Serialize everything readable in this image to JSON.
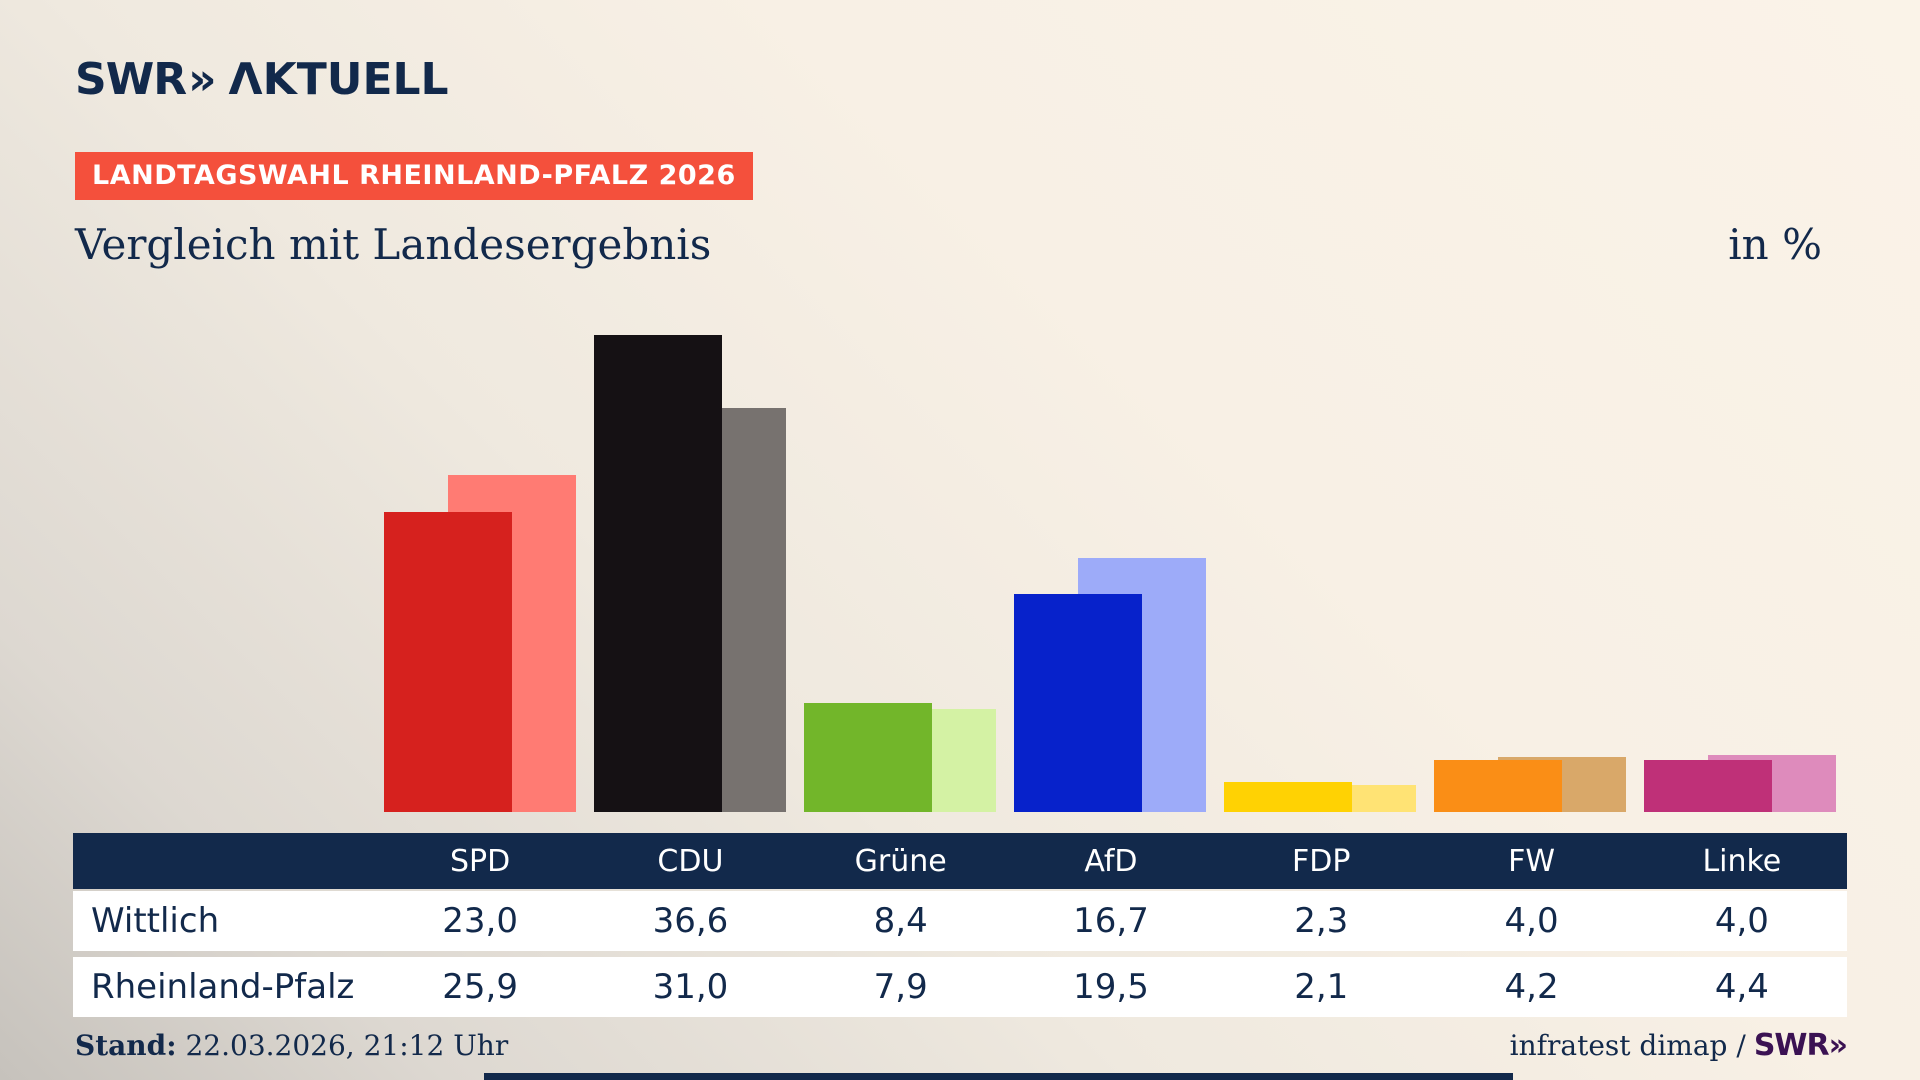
{
  "colors": {
    "background_light": "#faf3e8",
    "background_dark": "#c6c2bc",
    "navy": "#12294b",
    "banner_red": "#f4503c",
    "table_header_bg": "#12294b",
    "table_row_bg": "#ffffff",
    "footer_logo_purple": "#3b1253"
  },
  "header": {
    "logo": {
      "swr": "SWR",
      "chevrons": "»",
      "aktuell": "ΛKTUELL"
    },
    "banner": "LANDTAGSWAHL RHEINLAND-PFALZ 2026",
    "subtitle": "Vergleich mit Landesergebnis",
    "unit_label": "in %"
  },
  "chart_data": {
    "type": "bar",
    "title": "Vergleich mit Landesergebnis",
    "unit": "in %",
    "categories": [
      "SPD",
      "CDU",
      "Grüne",
      "AfD",
      "FDP",
      "FW",
      "Linke"
    ],
    "series": [
      {
        "name": "Wittlich",
        "values": [
          23.0,
          36.6,
          8.4,
          16.7,
          2.3,
          4.0,
          4.0
        ],
        "colors": [
          "#d6211e",
          "#151114",
          "#72b62a",
          "#0722cb",
          "#ffd203",
          "#fa8e16",
          "#bf3078"
        ]
      },
      {
        "name": "Rheinland-Pfalz",
        "values": [
          25.9,
          31.0,
          7.9,
          19.5,
          2.1,
          4.2,
          4.4
        ],
        "colors": [
          "#ff7b73",
          "#77726f",
          "#d4f2a4",
          "#9dabf9",
          "#ffe374",
          "#d9a869",
          "#de8bbc"
        ]
      }
    ],
    "ylim": [
      0,
      40
    ],
    "grid": false,
    "legend_position": "table-below",
    "value_format": "decimal-comma"
  },
  "table": {
    "columns": [
      "SPD",
      "CDU",
      "Grüne",
      "AfD",
      "FDP",
      "FW",
      "Linke"
    ],
    "rows": [
      {
        "label": "Wittlich",
        "values": [
          "23,0",
          "36,6",
          "8,4",
          "16,7",
          "2,3",
          "4,0",
          "4,0"
        ]
      },
      {
        "label": "Rheinland-Pfalz",
        "values": [
          "25,9",
          "31,0",
          "7,9",
          "19,5",
          "2,1",
          "4,2",
          "4,4"
        ]
      }
    ]
  },
  "footer": {
    "stand_label": "Stand:",
    "stand_value": "22.03.2026, 21:12 Uhr",
    "source_text": "infratest dimap /",
    "source_logo": "SWR»"
  }
}
